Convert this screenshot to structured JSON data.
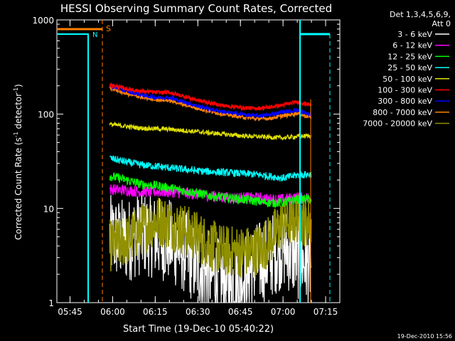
{
  "chart_data": {
    "type": "line",
    "title": "HESSI Observing Summary Count Rates, Corrected",
    "xlabel": "Start Time (19-Dec-10 05:40:22)",
    "ylabel": "Corrected Count Rate (s^-1 detector^-1)",
    "ylabel_main": "Corrected Count Rate (s",
    "ylabel_sup1": "-1",
    "ylabel_mid": " detector",
    "ylabel_sup2": "-1",
    "ylabel_end": ")",
    "y_scale": "log",
    "xlim": [
      "05:40:22",
      "07:20:00"
    ],
    "ylim": [
      1,
      1000
    ],
    "x_ticks": [
      "05:45",
      "06:00",
      "06:15",
      "06:30",
      "06:45",
      "07:00",
      "07:15"
    ],
    "y_ticks": [
      "1",
      "10",
      "100",
      "1000"
    ],
    "grid": false,
    "legend_position": "top-right",
    "legend_header": [
      "Det 1,3,4,5,6,9,",
      "Att 0"
    ],
    "series": [
      {
        "name": "3 - 6 keV",
        "color": "#ffffff",
        "x": [
          "05:59",
          "06:05",
          "06:10",
          "06:15",
          "06:20",
          "06:25",
          "06:30",
          "06:35",
          "06:40",
          "06:45",
          "06:50",
          "06:55",
          "07:00",
          "07:05",
          "07:10"
        ],
        "values": [
          5,
          4.5,
          5.5,
          5,
          4.5,
          3.5,
          2.5,
          2,
          1.5,
          1.8,
          2.5,
          3,
          4,
          3,
          2.5
        ]
      },
      {
        "name": "6 - 12 keV",
        "color": "#ff00ff",
        "x": [
          "05:59",
          "06:05",
          "06:10",
          "06:15",
          "06:20",
          "06:25",
          "06:30",
          "06:35",
          "06:40",
          "06:45",
          "06:50",
          "06:55",
          "07:00",
          "07:05",
          "07:10"
        ],
        "values": [
          16,
          15.5,
          15,
          15,
          15,
          14.5,
          14,
          13.5,
          13,
          13,
          13,
          12.5,
          12.5,
          13,
          13
        ]
      },
      {
        "name": "12 - 25 keV",
        "color": "#00ff00",
        "x": [
          "05:59",
          "06:05",
          "06:10",
          "06:15",
          "06:20",
          "06:25",
          "06:30",
          "06:35",
          "06:40",
          "06:45",
          "06:50",
          "06:55",
          "07:00",
          "07:05",
          "07:10"
        ],
        "values": [
          22,
          20,
          18,
          17.5,
          16.5,
          15.5,
          14.5,
          13.5,
          13,
          12.5,
          12,
          11.5,
          11.5,
          12.5,
          12.5
        ]
      },
      {
        "name": "25 - 50 keV",
        "color": "#00ffff",
        "x": [
          "05:59",
          "06:05",
          "06:10",
          "06:15",
          "06:20",
          "06:25",
          "06:30",
          "06:35",
          "06:40",
          "06:45",
          "06:50",
          "06:55",
          "07:00",
          "07:05",
          "07:10"
        ],
        "values": [
          34,
          31,
          29,
          28,
          27,
          26,
          25,
          24.5,
          24,
          23.5,
          23,
          22,
          21,
          22.5,
          23
        ]
      },
      {
        "name": "50 - 100 keV",
        "color": "#e0e000",
        "x": [
          "05:59",
          "06:05",
          "06:10",
          "06:15",
          "06:20",
          "06:25",
          "06:30",
          "06:35",
          "06:40",
          "06:45",
          "06:50",
          "06:55",
          "07:00",
          "07:05",
          "07:10"
        ],
        "values": [
          78,
          74,
          71,
          70,
          69,
          67,
          65,
          63,
          61,
          59,
          58,
          57,
          56,
          58,
          59
        ]
      },
      {
        "name": "100 - 300 keV",
        "color": "#ff0000",
        "x": [
          "05:59",
          "06:05",
          "06:10",
          "06:15",
          "06:20",
          "06:25",
          "06:30",
          "06:35",
          "06:40",
          "06:45",
          "06:50",
          "06:55",
          "07:00",
          "07:05",
          "07:10"
        ],
        "values": [
          205,
          185,
          175,
          170,
          170,
          155,
          140,
          130,
          122,
          118,
          115,
          118,
          125,
          135,
          125
        ]
      },
      {
        "name": "300 - 800 keV",
        "color": "#0000ff",
        "x": [
          "05:59",
          "06:05",
          "06:10",
          "06:15",
          "06:20",
          "06:25",
          "06:30",
          "06:35",
          "06:40",
          "06:45",
          "06:50",
          "06:55",
          "07:00",
          "07:05",
          "07:10"
        ],
        "values": [
          200,
          175,
          160,
          150,
          150,
          135,
          122,
          112,
          105,
          100,
          96,
          98,
          106,
          110,
          98
        ]
      },
      {
        "name": "800 - 7000 keV",
        "color": "#ff8000",
        "x": [
          "05:59",
          "06:05",
          "06:10",
          "06:15",
          "06:20",
          "06:25",
          "06:30",
          "06:35",
          "06:40",
          "06:45",
          "06:50",
          "06:55",
          "07:00",
          "07:05",
          "07:10"
        ],
        "values": [
          190,
          165,
          152,
          143,
          140,
          127,
          115,
          106,
          99,
          94,
          90,
          90,
          96,
          102,
          92
        ]
      },
      {
        "name": "7000 - 20000 keV",
        "color": "#909000",
        "x": [
          "05:59",
          "06:05",
          "06:10",
          "06:15",
          "06:20",
          "06:25",
          "06:30",
          "06:35",
          "06:40",
          "06:45",
          "06:50",
          "06:55",
          "07:00",
          "07:05",
          "07:10"
        ],
        "values": [
          4,
          4.5,
          6,
          7.5,
          7,
          6,
          5,
          4,
          3.5,
          3.5,
          3.5,
          4.5,
          7,
          8,
          7
        ]
      }
    ],
    "flags": [
      {
        "label": "S",
        "color": "#ff8000"
      },
      {
        "label": "N",
        "color": "#00ffff"
      }
    ],
    "footer_date": "19-Dec-2010 15:56"
  }
}
